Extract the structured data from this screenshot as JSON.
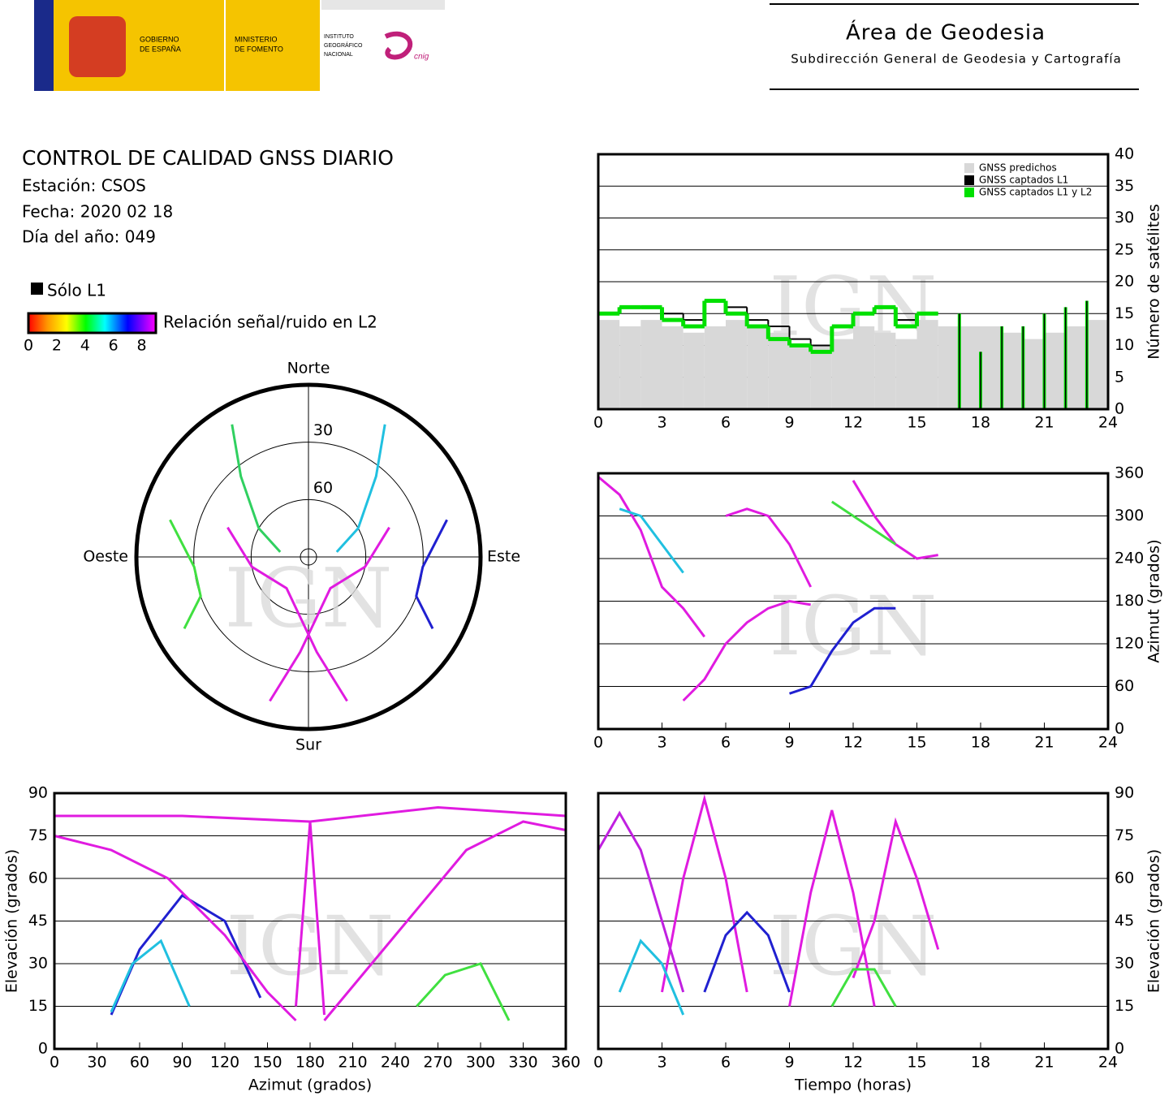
{
  "header": {
    "gobierno": [
      "GOBIERNO",
      "DE ESPAÑA"
    ],
    "ministerio": [
      "MINISTERIO",
      "DE FOMENTO"
    ],
    "instituto": [
      "INSTITUTO",
      "GEOGRÁFICO",
      "NACIONAL"
    ],
    "cnig": "cnig",
    "area": "Área de Geodesia",
    "subdireccion": "Subdirección General de Geodesia y Cartografía"
  },
  "info": {
    "title": "CONTROL DE CALIDAD GNSS DIARIO",
    "estacion": "Estación: CSOS",
    "fecha": "Fecha: 2020 02 18",
    "dia": "Día del año: 049"
  },
  "legend": {
    "l1_only": "Sólo L1",
    "l1_color": "#000000",
    "colorbar_label": "Relación señal/ruido en L2",
    "colorbar_range": [
      0,
      9
    ],
    "colorbar_ticks": [
      0,
      2,
      4,
      6,
      8
    ]
  },
  "watermark": "IGN",
  "chart_data": [
    {
      "type": "polar",
      "direction_labels": [
        "Norte",
        "Este",
        "Sur",
        "Oeste"
      ],
      "rlim": [
        0,
        90
      ],
      "rticks": [
        30,
        60
      ],
      "series": [
        {
          "color": "#30d060",
          "azimuth": [
            330,
            320,
            300,
            280
          ],
          "elevation": [
            10,
            35,
            60,
            75
          ]
        },
        {
          "color": "#20c0e0",
          "azimuth": [
            30,
            40,
            60,
            80
          ],
          "elevation": [
            10,
            35,
            60,
            75
          ]
        },
        {
          "color": "#e01be0",
          "azimuth": [
            165,
            175,
            190,
            215,
            260,
            290
          ],
          "elevation": [
            12,
            40,
            60,
            70,
            60,
            45
          ]
        },
        {
          "color": "#e01be0",
          "azimuth": [
            195,
            185,
            170,
            145,
            100,
            70
          ],
          "elevation": [
            12,
            40,
            60,
            70,
            60,
            45
          ]
        },
        {
          "color": "#40e040",
          "azimuth": [
            240,
            250,
            265,
            285
          ],
          "elevation": [
            15,
            30,
            30,
            15
          ]
        },
        {
          "color": "#2020d0",
          "azimuth": [
            120,
            110,
            95,
            75
          ],
          "elevation": [
            15,
            30,
            30,
            15
          ]
        }
      ]
    },
    {
      "type": "step",
      "ylabel": "Número de satélites",
      "xlim": [
        0,
        24
      ],
      "xticks": [
        0,
        3,
        6,
        9,
        12,
        15,
        18,
        21,
        24
      ],
      "ylim": [
        0,
        40
      ],
      "yticks": [
        0,
        5,
        10,
        15,
        20,
        25,
        30,
        35,
        40
      ],
      "grid": true,
      "legend": "top-right",
      "x": [
        0,
        1,
        2,
        3,
        4,
        5,
        6,
        7,
        8,
        9,
        10,
        11,
        12,
        13,
        14,
        15,
        16,
        17,
        18,
        19,
        20,
        21,
        22,
        23
      ],
      "series": [
        {
          "name": "GNSS predichos",
          "color": "#d8d8d8",
          "fill": true,
          "values": [
            14,
            13,
            14,
            13,
            12,
            13,
            14,
            13,
            12,
            10,
            10,
            11,
            13,
            12,
            11,
            14,
            13,
            13,
            13,
            12,
            11,
            12,
            13,
            14
          ]
        },
        {
          "name": "GNSS captados L1",
          "color": "#000000",
          "values": [
            15,
            16,
            16,
            15,
            14,
            17,
            16,
            14,
            13,
            11,
            10,
            13,
            15,
            16,
            14,
            15,
            null,
            null,
            null,
            null,
            null,
            null,
            null,
            null
          ]
        },
        {
          "name": "GNSS captados L1 y L2",
          "color": "#00e000",
          "values": [
            15,
            16,
            16,
            14,
            13,
            17,
            15,
            13,
            11,
            10,
            9,
            13,
            15,
            16,
            13,
            15,
            null,
            null,
            null,
            null,
            null,
            null,
            null,
            null
          ]
        }
      ],
      "spikes": {
        "x": [
          17,
          18,
          19,
          20,
          21,
          22,
          23
        ],
        "values": [
          15,
          9,
          13,
          13,
          15,
          16,
          17
        ]
      }
    },
    {
      "type": "line",
      "ylabel": "Azimut (grados)",
      "xlim": [
        0,
        24
      ],
      "xticks": [
        0,
        3,
        6,
        9,
        12,
        15,
        18,
        21,
        24
      ],
      "ylim": [
        0,
        360
      ],
      "yticks": [
        0,
        60,
        120,
        180,
        240,
        300,
        360
      ],
      "grid": true,
      "series": [
        {
          "color": "#e01be0",
          "x": [
            0,
            1,
            2,
            3,
            4,
            5
          ],
          "values": [
            355,
            330,
            280,
            200,
            170,
            130
          ]
        },
        {
          "color": "#e01be0",
          "x": [
            4,
            5,
            6,
            7,
            8,
            9,
            10
          ],
          "values": [
            40,
            70,
            120,
            150,
            170,
            180,
            175
          ]
        },
        {
          "color": "#2020d0",
          "x": [
            9,
            10,
            11,
            12,
            13,
            14
          ],
          "values": [
            50,
            60,
            110,
            150,
            170,
            170
          ]
        },
        {
          "color": "#e01be0",
          "x": [
            12,
            13,
            14,
            15,
            16
          ],
          "values": [
            350,
            300,
            260,
            240,
            245
          ]
        },
        {
          "color": "#20c0e0",
          "x": [
            1,
            2,
            3,
            4
          ],
          "values": [
            310,
            300,
            260,
            220
          ]
        },
        {
          "color": "#e01be0",
          "x": [
            6,
            7,
            8,
            9,
            10
          ],
          "values": [
            300,
            310,
            300,
            260,
            200
          ]
        },
        {
          "color": "#40e040",
          "x": [
            11,
            12,
            13,
            14
          ],
          "values": [
            320,
            300,
            280,
            260
          ]
        }
      ]
    },
    {
      "type": "line",
      "xlabel": "Azimut (grados)",
      "ylabel": "Elevación (grados)",
      "xlim": [
        0,
        360
      ],
      "xticks": [
        0,
        30,
        60,
        90,
        120,
        150,
        180,
        210,
        240,
        270,
        300,
        330,
        360
      ],
      "ylim": [
        0,
        90
      ],
      "yticks": [
        0,
        15,
        30,
        45,
        60,
        75,
        90
      ],
      "grid": true,
      "series": [
        {
          "color": "#2020d0",
          "x": [
            40,
            60,
            90,
            120,
            145
          ],
          "values": [
            12,
            35,
            54,
            45,
            18
          ]
        },
        {
          "color": "#e01be0",
          "x": [
            0,
            90,
            180,
            270,
            360
          ],
          "values": [
            82,
            82,
            80,
            85,
            82
          ]
        },
        {
          "color": "#e01be0",
          "x": [
            0,
            40,
            80,
            120,
            150,
            170
          ],
          "values": [
            75,
            70,
            60,
            40,
            20,
            10
          ]
        },
        {
          "color": "#e01be0",
          "x": [
            190,
            240,
            290,
            330,
            360
          ],
          "values": [
            10,
            40,
            70,
            80,
            77
          ]
        },
        {
          "color": "#40e040",
          "x": [
            255,
            275,
            300,
            320
          ],
          "values": [
            15,
            26,
            30,
            10
          ]
        },
        {
          "color": "#20c0e0",
          "x": [
            40,
            55,
            75,
            95
          ],
          "values": [
            13,
            30,
            38,
            15
          ]
        },
        {
          "color": "#e01be0",
          "x": [
            170,
            180,
            190
          ],
          "values": [
            15,
            80,
            12
          ]
        }
      ]
    },
    {
      "type": "line",
      "xlabel": "Tiempo (horas)",
      "ylabel": "Elevación (grados)",
      "xlim": [
        0,
        24
      ],
      "xticks": [
        0,
        3,
        6,
        9,
        12,
        15,
        18,
        21,
        24
      ],
      "ylim": [
        0,
        90
      ],
      "yticks": [
        0,
        15,
        30,
        45,
        60,
        75,
        90
      ],
      "grid": true,
      "series": [
        {
          "color": "#e01be0",
          "x": [
            3,
            4,
            5,
            6,
            7
          ],
          "values": [
            20,
            60,
            88,
            60,
            20
          ]
        },
        {
          "color": "#e01be0",
          "x": [
            9,
            10,
            11,
            12,
            13
          ],
          "values": [
            15,
            55,
            84,
            55,
            15
          ]
        },
        {
          "color": "#c020e0",
          "x": [
            0,
            1,
            2,
            3,
            4
          ],
          "values": [
            70,
            83,
            70,
            45,
            20
          ]
        },
        {
          "color": "#2020d0",
          "x": [
            5,
            6,
            7,
            8,
            9
          ],
          "values": [
            20,
            40,
            48,
            40,
            20
          ]
        },
        {
          "color": "#e01be0",
          "x": [
            12,
            13,
            14,
            15,
            16
          ],
          "values": [
            25,
            45,
            80,
            60,
            35
          ]
        },
        {
          "color": "#20c0e0",
          "x": [
            1,
            2,
            3,
            4
          ],
          "values": [
            20,
            38,
            30,
            12
          ]
        },
        {
          "color": "#40e040",
          "x": [
            11,
            12,
            13,
            14
          ],
          "values": [
            15,
            28,
            28,
            15
          ]
        }
      ]
    }
  ]
}
